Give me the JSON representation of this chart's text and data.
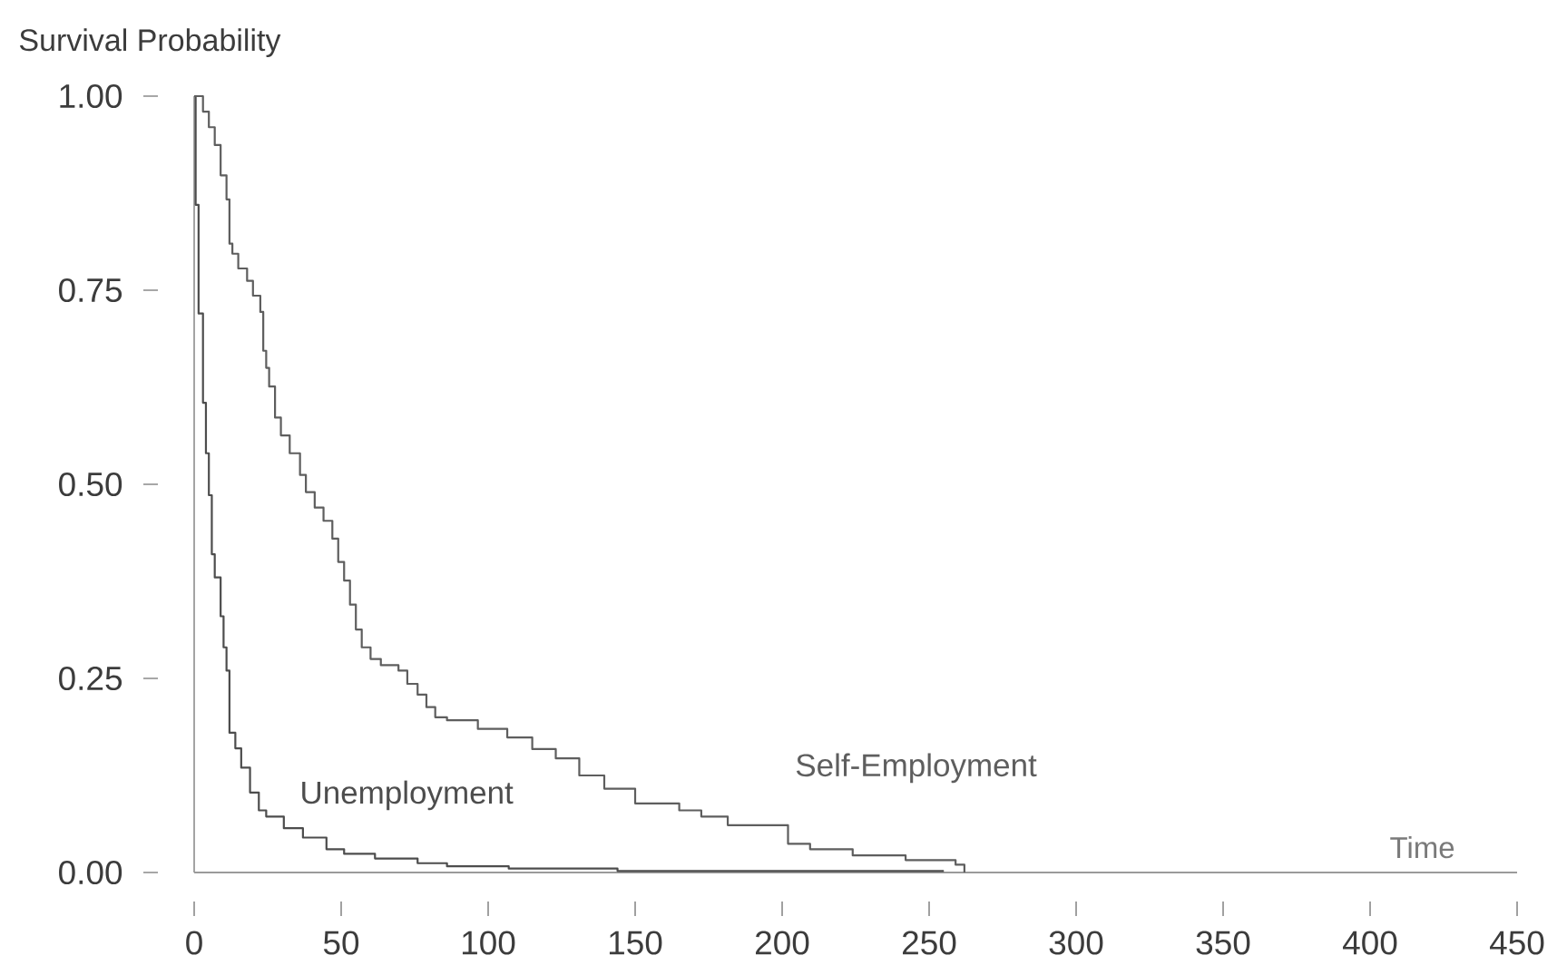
{
  "chart_data": {
    "type": "step",
    "xlabel": "Time",
    "ylabel": "Survival Probability",
    "xlim": [
      0,
      450
    ],
    "ylim": [
      0,
      1
    ],
    "xticks": [
      0,
      50,
      100,
      150,
      200,
      250,
      300,
      350,
      400,
      450
    ],
    "yticks": [
      {
        "value": 0,
        "label": "0.00"
      },
      {
        "value": 0.25,
        "label": "0.25"
      },
      {
        "value": 0.5,
        "label": "0.50"
      },
      {
        "value": 0.75,
        "label": "0.75"
      },
      {
        "value": 1,
        "label": "1.00"
      }
    ],
    "series": [
      {
        "name": "Unemployment",
        "color": "#4d4d4d",
        "x": [
          0,
          0.5,
          1.5,
          3,
          4,
          5,
          6,
          7,
          9,
          10,
          11,
          12,
          14,
          16,
          19,
          22,
          24.5,
          30.5,
          37,
          45,
          51,
          61.5,
          76,
          86,
          107,
          144,
          255
        ],
        "values": [
          1,
          0.86,
          0.72,
          0.605,
          0.54,
          0.486,
          0.41,
          0.38,
          0.33,
          0.29,
          0.26,
          0.18,
          0.16,
          0.135,
          0.103,
          0.08,
          0.072,
          0.057,
          0.045,
          0.03,
          0.024,
          0.018,
          0.012,
          0.008,
          0.005,
          0.002,
          0.002
        ]
      },
      {
        "name": "Self-Employment",
        "color": "#5e5e5e",
        "x": [
          0,
          3,
          5,
          7,
          9,
          11,
          12,
          13,
          15,
          18,
          20,
          22.5,
          23.5,
          24.5,
          25.5,
          27.5,
          29.5,
          32.5,
          36,
          38,
          41,
          44,
          47,
          49,
          51,
          53,
          55,
          57,
          60,
          63.5,
          69.5,
          72.5,
          76,
          79,
          82,
          86,
          96.5,
          106.5,
          115,
          123,
          131,
          139.5,
          150,
          165,
          172.5,
          181.5,
          202,
          209.5,
          224,
          242,
          259,
          262
        ],
        "values": [
          1,
          0.98,
          0.96,
          0.937,
          0.898,
          0.867,
          0.81,
          0.797,
          0.778,
          0.762,
          0.743,
          0.722,
          0.672,
          0.65,
          0.626,
          0.586,
          0.563,
          0.54,
          0.512,
          0.49,
          0.47,
          0.453,
          0.43,
          0.4,
          0.376,
          0.345,
          0.313,
          0.29,
          0.275,
          0.267,
          0.26,
          0.243,
          0.229,
          0.213,
          0.2,
          0.196,
          0.185,
          0.174,
          0.159,
          0.147,
          0.125,
          0.108,
          0.089,
          0.08,
          0.072,
          0.061,
          0.037,
          0.03,
          0.022,
          0.016,
          0.01,
          0
        ]
      }
    ]
  }
}
